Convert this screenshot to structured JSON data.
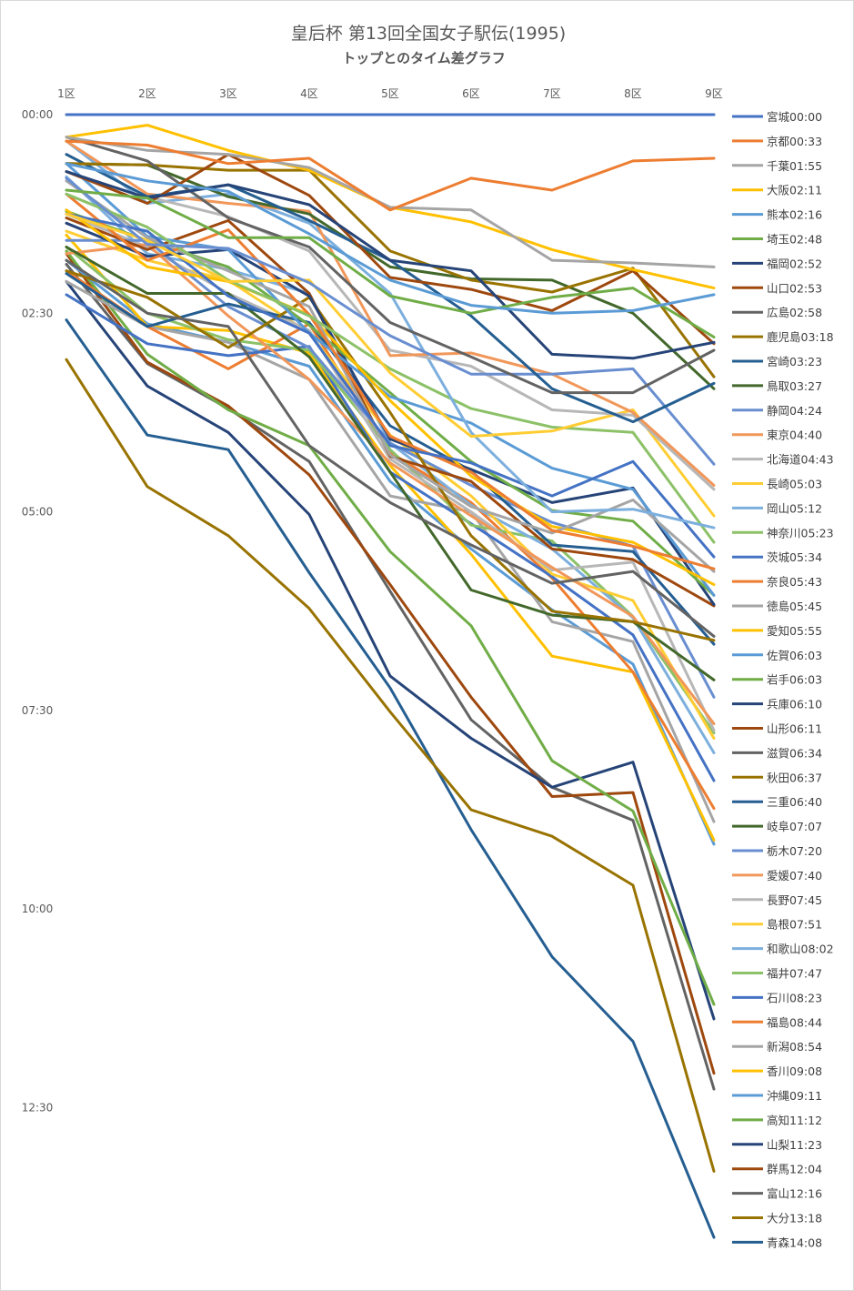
{
  "chart_data": {
    "type": "line",
    "title": "皇后杯 第13回全国女子駅伝(1995)",
    "subtitle": "トップとのタイム差グラフ",
    "categories": [
      "1区",
      "2区",
      "3区",
      "4区",
      "5区",
      "6区",
      "7区",
      "8区",
      "9区"
    ],
    "y_axis": {
      "unit": "mm:ss time behind leader",
      "reversed": true,
      "ylim_seconds": [
        0,
        900
      ],
      "ticks": [
        "00:00",
        "02:30",
        "05:00",
        "07:30",
        "10:00",
        "12:30"
      ],
      "tick_seconds": [
        0,
        150,
        300,
        450,
        600,
        750
      ]
    },
    "grid": false,
    "legend_position": "right",
    "series": [
      {
        "name": "宮城00:00",
        "color": "#4472C4",
        "values": [
          0,
          0,
          0,
          0,
          0,
          0,
          0,
          0,
          0
        ]
      },
      {
        "name": "京都00:33",
        "color": "#ED7D31",
        "values": [
          20,
          23,
          37,
          33,
          72,
          48,
          57,
          35,
          33
        ]
      },
      {
        "name": "千葉01:55",
        "color": "#A5A5A5",
        "values": [
          17,
          27,
          30,
          40,
          70,
          72,
          110,
          112,
          115
        ]
      },
      {
        "name": "大阪02:11",
        "color": "#FFC000",
        "values": [
          17,
          8,
          27,
          42,
          70,
          81,
          102,
          117,
          131
        ]
      },
      {
        "name": "熊本02:16",
        "color": "#5B9BD5",
        "values": [
          37,
          50,
          58,
          90,
          125,
          144,
          150,
          148,
          136
        ]
      },
      {
        "name": "埼玉02:48",
        "color": "#70AD47",
        "values": [
          57,
          63,
          93,
          93,
          137,
          150,
          138,
          131,
          168
        ]
      },
      {
        "name": "福岡02:52",
        "color": "#264478",
        "values": [
          43,
          63,
          53,
          68,
          110,
          118,
          181,
          184,
          172
        ]
      },
      {
        "name": "山口02:53",
        "color": "#9E480E",
        "values": [
          43,
          67,
          30,
          61,
          123,
          132,
          148,
          118,
          173
        ]
      },
      {
        "name": "広島02:58",
        "color": "#636363",
        "values": [
          17,
          35,
          78,
          100,
          157,
          183,
          210,
          210,
          178
        ]
      },
      {
        "name": "鹿児島03:18",
        "color": "#997300",
        "values": [
          37,
          38,
          42,
          42,
          103,
          125,
          134,
          116,
          198
        ]
      },
      {
        "name": "宮崎03:23",
        "color": "#255E91",
        "values": [
          30,
          62,
          53,
          80,
          110,
          152,
          207,
          232,
          203
        ]
      },
      {
        "name": "鳥取03:27",
        "color": "#43682B",
        "values": [
          37,
          38,
          62,
          75,
          115,
          124,
          125,
          150,
          207
        ]
      },
      {
        "name": "静岡04:24",
        "color": "#698ED0",
        "values": [
          48,
          98,
          101,
          127,
          167,
          196,
          196,
          192,
          264
        ]
      },
      {
        "name": "東京04:40",
        "color": "#F1975A",
        "values": [
          20,
          60,
          67,
          73,
          182,
          180,
          196,
          225,
          280
        ]
      },
      {
        "name": "北海道04:43",
        "color": "#B7B7B7",
        "values": [
          30,
          62,
          77,
          103,
          178,
          190,
          223,
          227,
          283
        ]
      },
      {
        "name": "長崎05:03",
        "color": "#FFCD33",
        "values": [
          75,
          95,
          126,
          125,
          195,
          243,
          239,
          223,
          303
        ]
      },
      {
        "name": "岡山05:12",
        "color": "#7CAFDD",
        "values": [
          20,
          67,
          60,
          82,
          135,
          240,
          300,
          298,
          312
        ]
      },
      {
        "name": "神奈川05:23",
        "color": "#8CC168",
        "values": [
          60,
          85,
          125,
          152,
          192,
          222,
          236,
          240,
          323
        ]
      },
      {
        "name": "茨城05:34",
        "color": "#4472C4",
        "values": [
          75,
          88,
          137,
          165,
          250,
          263,
          288,
          262,
          334
        ]
      },
      {
        "name": "奈良05:43",
        "color": "#ED7D31",
        "values": [
          60,
          110,
          87,
          151,
          243,
          270,
          314,
          326,
          343
        ]
      },
      {
        "name": "徳島05:45",
        "color": "#A5A5A5",
        "values": [
          50,
          93,
          118,
          145,
          257,
          296,
          316,
          291,
          345
        ]
      },
      {
        "name": "愛知05:55",
        "color": "#FFC000",
        "values": [
          72,
          115,
          126,
          151,
          216,
          273,
          311,
          323,
          355
        ]
      },
      {
        "name": "佐賀06:03",
        "color": "#5B9BD5",
        "values": [
          37,
          92,
          102,
          165,
          213,
          233,
          267,
          283,
          363
        ]
      },
      {
        "name": "岩手06:03",
        "color": "#70AD47",
        "values": [
          73,
          95,
          115,
          159,
          210,
          262,
          299,
          307,
          363
        ]
      },
      {
        "name": "兵庫06:10",
        "color": "#264478",
        "values": [
          82,
          107,
          102,
          137,
          245,
          268,
          293,
          282,
          370
        ]
      },
      {
        "name": "山形06:11",
        "color": "#9E480E",
        "values": [
          78,
          102,
          80,
          135,
          258,
          277,
          328,
          336,
          371
        ]
      },
      {
        "name": "滋賀06:34",
        "color": "#636363",
        "values": [
          110,
          150,
          160,
          250,
          293,
          325,
          354,
          345,
          394
        ]
      },
      {
        "name": "秋田06:37",
        "color": "#997300",
        "values": [
          118,
          138,
          176,
          138,
          225,
          318,
          375,
          383,
          397
        ]
      },
      {
        "name": "三重06:40",
        "color": "#255E91",
        "values": [
          120,
          160,
          143,
          157,
          235,
          269,
          325,
          330,
          400
        ]
      },
      {
        "name": "岐阜07:07",
        "color": "#43682B",
        "values": [
          100,
          135,
          135,
          183,
          270,
          359,
          378,
          383,
          427
        ]
      },
      {
        "name": "栃木07:20",
        "color": "#698ED0",
        "values": [
          95,
          95,
          145,
          176,
          248,
          280,
          308,
          326,
          440
        ]
      },
      {
        "name": "愛媛07:40",
        "color": "#F1975A",
        "values": [
          105,
          98,
          152,
          200,
          263,
          303,
          342,
          379,
          460
        ]
      },
      {
        "name": "長野07:45",
        "color": "#B7B7B7",
        "values": [
          75,
          100,
          135,
          163,
          260,
          300,
          344,
          338,
          465
        ]
      },
      {
        "name": "島根07:51",
        "color": "#FFCD33",
        "values": [
          88,
          110,
          125,
          165,
          242,
          288,
          347,
          367,
          471
        ]
      },
      {
        "name": "和歌山08:02",
        "color": "#7CAFDD",
        "values": [
          47,
          105,
          117,
          135,
          248,
          295,
          328,
          380,
          482
        ]
      },
      {
        "name": "福井07:47",
        "color": "#8CC168",
        "values": [
          100,
          150,
          170,
          178,
          253,
          310,
          322,
          379,
          467
        ]
      },
      {
        "name": "石川08:23",
        "color": "#4472C4",
        "values": [
          136,
          173,
          182,
          175,
          270,
          309,
          349,
          393,
          503
        ]
      },
      {
        "name": "福島08:44",
        "color": "#ED7D31",
        "values": [
          118,
          160,
          192,
          158,
          255,
          293,
          350,
          421,
          524
        ]
      },
      {
        "name": "新潟08:54",
        "color": "#A5A5A5",
        "values": [
          126,
          160,
          172,
          200,
          288,
          300,
          383,
          398,
          534
        ]
      },
      {
        "name": "香川09:08",
        "color": "#FFC000",
        "values": [
          91,
          160,
          163,
          180,
          265,
          332,
          409,
          421,
          548
        ]
      },
      {
        "name": "沖縄09:11",
        "color": "#5B9BD5",
        "values": [
          110,
          158,
          172,
          190,
          277,
          328,
          374,
          415,
          551
        ]
      },
      {
        "name": "高知11:12",
        "color": "#70AD47",
        "values": [
          103,
          181,
          223,
          250,
          330,
          386,
          488,
          526,
          672
        ]
      },
      {
        "name": "山梨11:23",
        "color": "#264478",
        "values": [
          126,
          205,
          240,
          302,
          424,
          471,
          508,
          489,
          683
        ]
      },
      {
        "name": "群馬12:04",
        "color": "#9E480E",
        "values": [
          105,
          187,
          220,
          272,
          355,
          440,
          515,
          512,
          724
        ]
      },
      {
        "name": "富山12:16",
        "color": "#636363",
        "values": [
          113,
          188,
          222,
          262,
          360,
          457,
          508,
          533,
          736
        ]
      },
      {
        "name": "大分13:18",
        "color": "#997300",
        "values": [
          185,
          281,
          318,
          373,
          451,
          525,
          545,
          582,
          798
        ]
      },
      {
        "name": "青森14:08",
        "color": "#255E91",
        "values": [
          155,
          242,
          253,
          346,
          433,
          540,
          636,
          700,
          848
        ]
      }
    ]
  }
}
